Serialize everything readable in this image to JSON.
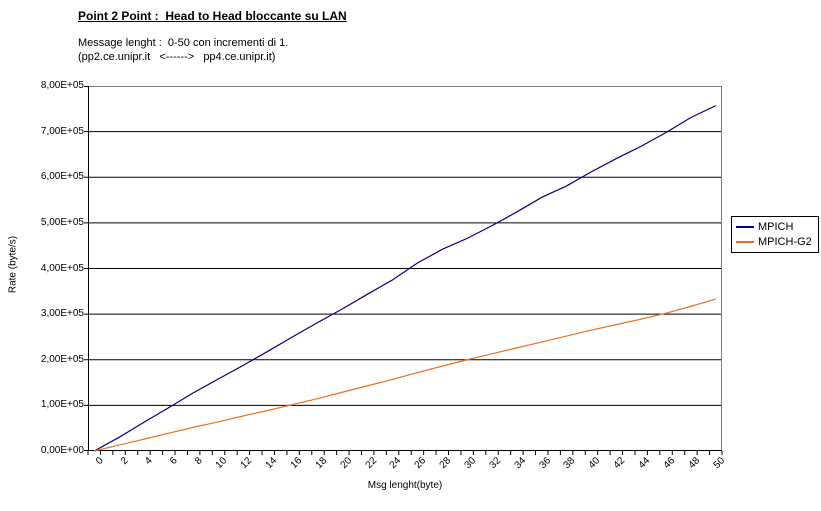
{
  "header": {
    "title": "Point 2 Point :  Head to Head bloccante su LAN",
    "subtitle_line1": "Message lenght :  0-50 con incrementi di 1.",
    "subtitle_line2": "(pp2.ce.unipr.it   <------>   pp4.ce.unipr.it)"
  },
  "colors": {
    "mpich_line": "#000080",
    "mpich_g2_line": "#E8721C",
    "gridline": "#000000",
    "plot_border": "#808080",
    "axis": "#000000",
    "background": "#FFFFFF"
  },
  "chart_data": {
    "type": "line",
    "title": "Point 2 Point :  Head to Head bloccante su LAN",
    "xlabel": "Msg lenght(byte)",
    "ylabel": "Rate (byte/s)",
    "xlim": [
      0,
      50
    ],
    "ylim": [
      0,
      800000
    ],
    "grid": "horizontal",
    "legend_position": "right",
    "y_tick_labels": [
      "0,00E+00",
      "1,00E+05",
      "2,00E+05",
      "3,00E+05",
      "4,00E+05",
      "5,00E+05",
      "6,00E+05",
      "7,00E+05",
      "8,00E+05"
    ],
    "x_tick_labels": [
      "0",
      "2",
      "4",
      "6",
      "8",
      "10",
      "12",
      "14",
      "16",
      "18",
      "20",
      "22",
      "24",
      "26",
      "28",
      "30",
      "32",
      "34",
      "36",
      "38",
      "40",
      "42",
      "44",
      "46",
      "48",
      "50"
    ],
    "x": [
      0,
      2,
      4,
      6,
      8,
      10,
      12,
      14,
      16,
      18,
      20,
      22,
      24,
      26,
      28,
      30,
      32,
      34,
      36,
      38,
      40,
      42,
      44,
      46,
      48,
      50
    ],
    "series": [
      {
        "name": "MPICH",
        "color": "#000080",
        "values": [
          0,
          30000,
          63000,
          95000,
          128000,
          158000,
          188000,
          219000,
          251000,
          282000,
          312000,
          344000,
          375000,
          412000,
          442000,
          466000,
          494000,
          524000,
          556000,
          581000,
          612000,
          641000,
          668000,
          698000,
          731000,
          757000
        ]
      },
      {
        "name": "MPICH-G2",
        "color": "#E8721C",
        "values": [
          0,
          13000,
          26000,
          39000,
          52000,
          64000,
          77000,
          89000,
          102000,
          115000,
          129000,
          143000,
          157000,
          172000,
          186000,
          200000,
          213000,
          226000,
          239000,
          252000,
          265000,
          277000,
          289000,
          302000,
          317000,
          333000
        ]
      }
    ]
  }
}
